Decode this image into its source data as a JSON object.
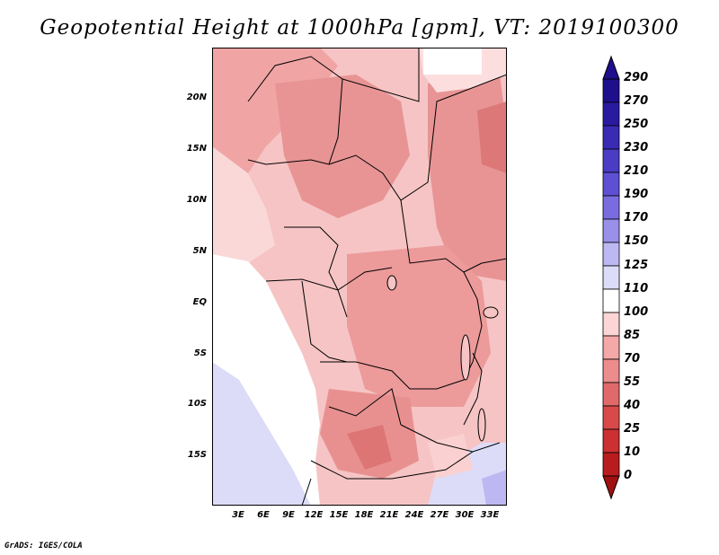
{
  "title": "Geopotential Height at 1000hPa [gpm], VT: 2019100300",
  "credit": "GrADS: IGES/COLA",
  "map": {
    "latitude_ticks": [
      "20N",
      "15N",
      "10N",
      "5N",
      "EQ",
      "5S",
      "10S",
      "15S"
    ],
    "longitude_ticks": [
      "3E",
      "6E",
      "9E",
      "12E",
      "15E",
      "18E",
      "21E",
      "24E",
      "27E",
      "30E",
      "33E"
    ]
  },
  "colorbar": {
    "labels": [
      "290",
      "270",
      "250",
      "230",
      "210",
      "190",
      "170",
      "150",
      "125",
      "110",
      "100",
      "85",
      "70",
      "55",
      "40",
      "25",
      "10",
      "0"
    ],
    "colors": [
      "#1e0f8c",
      "#2a1aa0",
      "#3a2ab4",
      "#4a3cc4",
      "#5e50d2",
      "#7a6ce0",
      "#9a90ea",
      "#bdb8f2",
      "#dcdcf8",
      "#ffffff",
      "#fcd6d6",
      "#f4a8a8",
      "#ec8c8c",
      "#e06a6a",
      "#d84a4a",
      "#cc3030",
      "#b81c1c",
      "#a01010"
    ]
  }
}
